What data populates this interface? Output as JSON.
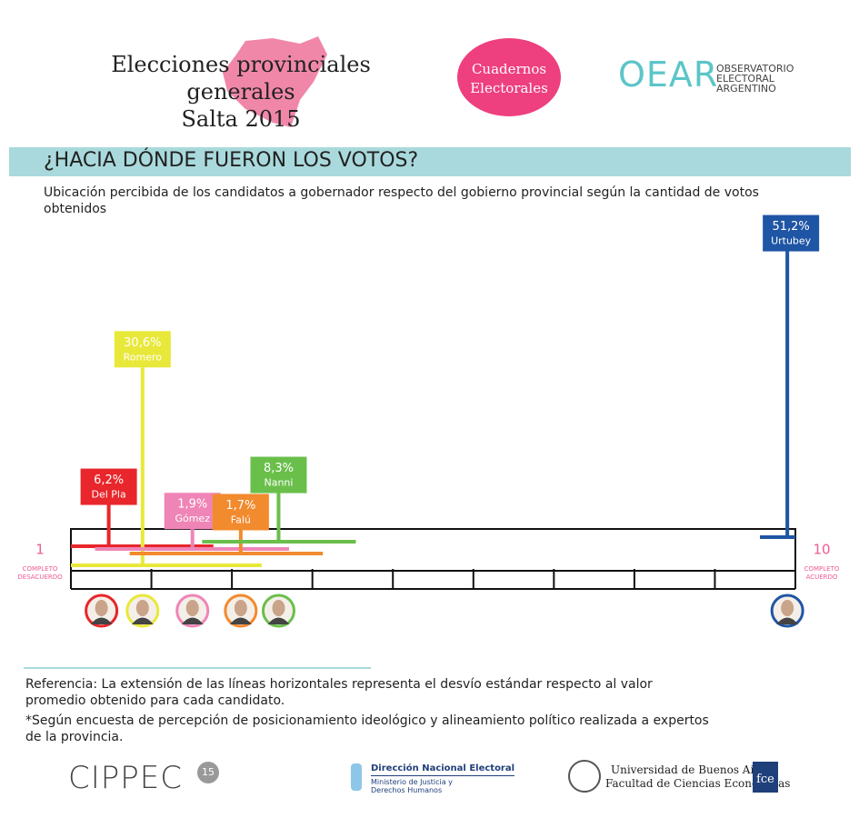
{
  "header": {
    "title": "Elecciones provinciales generales",
    "subtitle": "Salta 2015",
    "badge": "Cuadernos Electorales",
    "logo": "OEAR",
    "logo_text": "OBSERVATORIO ELECTORAL ARGENTINO"
  },
  "chart_data": {
    "type": "position",
    "title": "¿HACIA DÓNDE FUERON LOS VOTOS?",
    "subtitle": "Ubicación percibida de los candidatos a gobernador respecto del gobierno provincial según la cantidad de votos obtenidos",
    "series": [
      {
        "name": "Del Pla",
        "color": "#e8262b",
        "position": 1.47,
        "low": 1.0,
        "high": 2.77,
        "votes": 6.2,
        "votes_label": "6,2%"
      },
      {
        "name": "Romero",
        "color": "#e8e83a",
        "position": 1.89,
        "low": 1.0,
        "high": 3.37,
        "votes": 30.6,
        "votes_label": "30,6%"
      },
      {
        "name": "Gómez",
        "color": "#ef85b6",
        "position": 2.51,
        "low": 1.3,
        "high": 3.71,
        "votes": 1.9,
        "votes_label": "1,9%"
      },
      {
        "name": "Falú",
        "color": "#f28a2e",
        "position": 3.11,
        "low": 1.73,
        "high": 4.13,
        "votes": 1.7,
        "votes_label": "1,7%"
      },
      {
        "name": "Nanni",
        "color": "#6abf4b",
        "position": 3.58,
        "low": 2.63,
        "high": 4.54,
        "votes": 8.3,
        "votes_label": "8,3%"
      },
      {
        "name": "Urtubey",
        "color": "#1f55a5",
        "position": 9.9,
        "low": 9.56,
        "high": 10,
        "votes": 51.2,
        "votes_label": "51,2%"
      }
    ],
    "xlim": [
      1,
      10
    ],
    "xticks": [
      1,
      2,
      3,
      4,
      5,
      6,
      7,
      8,
      9,
      10
    ],
    "scale_ends": [
      {
        "value": 1,
        "label": "COMPLETO DESACUERDO"
      },
      {
        "value": 10,
        "label": "COMPLETO ACUERDO"
      }
    ]
  },
  "notes": [
    "Referencia:  La extensión de las líneas horizontales representa el desvío estándar respecto al valor promedio obtenido para cada candidato.",
    "*Según encuesta de percepción de posicionamiento ideológico y alineamiento político realizada a expertos de la provincia."
  ],
  "footer": {
    "cippec": "CIPPEC",
    "cippec_badge": "15",
    "dne": "Dirección Nacional Electoral",
    "ministry": "Ministerio de Justicia y Derechos Humanos",
    "uba": "Universidad de Buenos Aires",
    "fce_name": "Facultad de Ciencias Económicas",
    "fce": "fce"
  }
}
